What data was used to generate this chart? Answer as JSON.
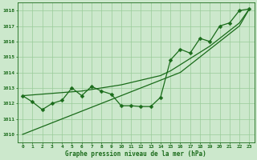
{
  "title": "Graphe pression niveau de la mer (hPa)",
  "x_values": [
    0,
    1,
    2,
    3,
    4,
    5,
    6,
    7,
    8,
    9,
    10,
    11,
    12,
    13,
    14,
    15,
    16,
    17,
    18,
    19,
    20,
    21,
    22,
    23
  ],
  "y_main": [
    1012.5,
    1012.1,
    1011.6,
    1012.0,
    1012.2,
    1013.0,
    1012.5,
    1013.1,
    1012.8,
    1012.6,
    1011.85,
    1011.85,
    1011.8,
    1011.8,
    1012.4,
    1014.8,
    1015.5,
    1015.25,
    1016.2,
    1016.0,
    1017.0,
    1017.2,
    1018.0,
    1018.1
  ],
  "y_trend1": [
    1010.0,
    1010.25,
    1010.5,
    1010.75,
    1011.0,
    1011.25,
    1011.5,
    1011.75,
    1012.0,
    1012.25,
    1012.5,
    1012.75,
    1013.0,
    1013.25,
    1013.5,
    1013.75,
    1014.0,
    1014.5,
    1015.0,
    1015.5,
    1016.0,
    1016.5,
    1017.0,
    1018.1
  ],
  "y_trend2": [
    1012.5,
    1012.55,
    1012.6,
    1012.65,
    1012.7,
    1012.75,
    1012.8,
    1012.9,
    1013.0,
    1013.1,
    1013.2,
    1013.35,
    1013.5,
    1013.65,
    1013.8,
    1014.1,
    1014.5,
    1014.9,
    1015.3,
    1015.7,
    1016.2,
    1016.7,
    1017.2,
    1018.1
  ],
  "ylim": [
    1009.5,
    1018.5
  ],
  "xlim": [
    -0.5,
    23.5
  ],
  "yticks": [
    1010,
    1011,
    1012,
    1013,
    1014,
    1015,
    1016,
    1017,
    1018
  ],
  "xticks": [
    0,
    1,
    2,
    3,
    4,
    5,
    6,
    7,
    8,
    9,
    10,
    11,
    12,
    13,
    14,
    15,
    16,
    17,
    18,
    19,
    20,
    21,
    22,
    23
  ],
  "line_color": "#1a6b1a",
  "bg_color": "#cce8cc",
  "grid_color": "#99cc99",
  "title_color": "#1a6b1a",
  "line_width": 0.9,
  "marker_size": 2.5
}
